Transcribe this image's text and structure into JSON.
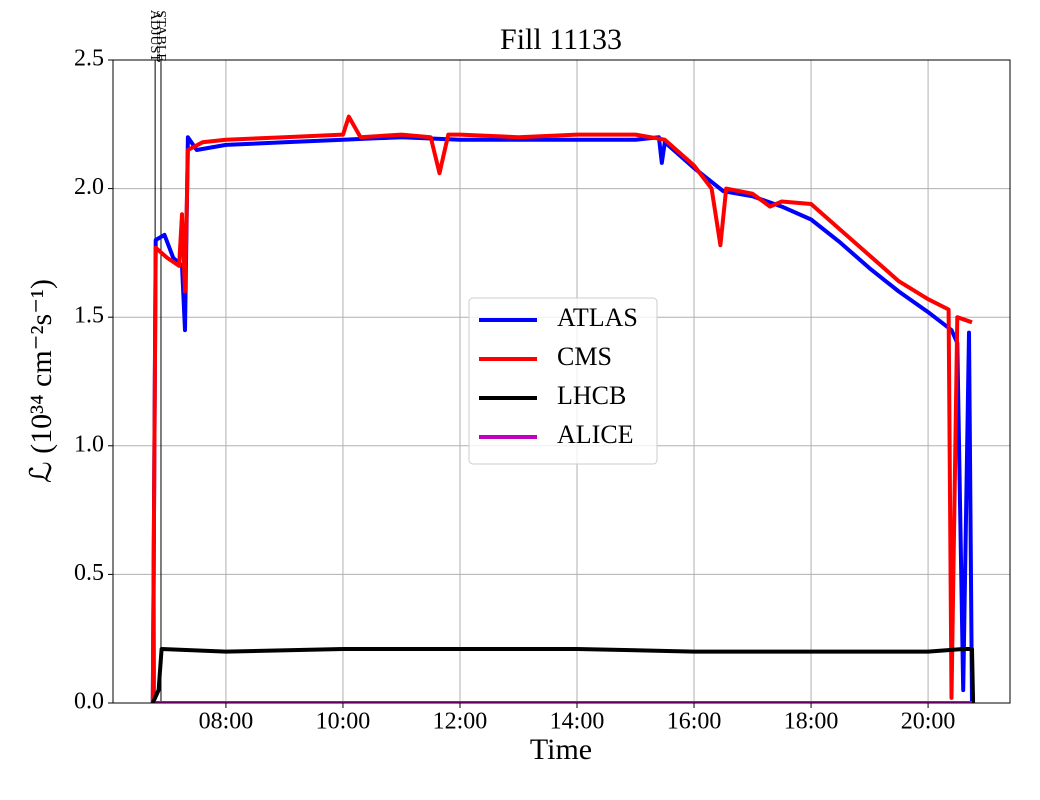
{
  "chart_data": {
    "type": "line",
    "title": "Fill 11133",
    "x_label": "Time",
    "y_label": "ℒ (10³⁴ cm⁻²s⁻¹)",
    "xlim": [
      6.07,
      21.4
    ],
    "ylim": [
      0,
      2.5
    ],
    "xticks": [
      {
        "value": 8,
        "label": "08:00"
      },
      {
        "value": 10,
        "label": "10:00"
      },
      {
        "value": 12,
        "label": "12:00"
      },
      {
        "value": 14,
        "label": "14:00"
      },
      {
        "value": 16,
        "label": "16:00"
      },
      {
        "value": 18,
        "label": "18:00"
      },
      {
        "value": 20,
        "label": "20:00"
      }
    ],
    "yticks": [
      {
        "value": 0,
        "label": "0.0"
      },
      0.5,
      {
        "value": 1,
        "label": "1.0"
      },
      1.5,
      {
        "value": 2,
        "label": "2.0"
      },
      2.5
    ],
    "grid": true,
    "legend": "center",
    "annotations": [
      {
        "text": "ADJUST",
        "x": 6.79
      },
      {
        "text": "STABLE",
        "x": 6.89
      }
    ],
    "series": [
      {
        "name": "ATLAS",
        "color": "#0000ff",
        "x": [
          6.75,
          6.8,
          6.95,
          7.1,
          7.25,
          7.3,
          7.35,
          7.5,
          8,
          9,
          10,
          11,
          12,
          13,
          14,
          15,
          15.4,
          15.45,
          15.5,
          16,
          16.5,
          17,
          17.5,
          18,
          18.5,
          19,
          19.5,
          20,
          20.4,
          20.5,
          20.6,
          20.7,
          20.75
        ],
        "values": [
          0,
          1.8,
          1.82,
          1.73,
          1.7,
          1.45,
          2.2,
          2.15,
          2.17,
          2.18,
          2.19,
          2.2,
          2.19,
          2.19,
          2.19,
          2.19,
          2.2,
          2.1,
          2.18,
          2.08,
          1.99,
          1.97,
          1.93,
          1.88,
          1.79,
          1.69,
          1.6,
          1.52,
          1.45,
          1.4,
          0.05,
          1.44,
          0
        ]
      },
      {
        "name": "CMS",
        "color": "#ff0000",
        "x": [
          6.75,
          6.8,
          7.0,
          7.2,
          7.25,
          7.3,
          7.35,
          7.6,
          8,
          9,
          10,
          10.1,
          10.3,
          11,
          11.5,
          11.65,
          11.8,
          12,
          13,
          14,
          15,
          15.5,
          16,
          16.3,
          16.45,
          16.55,
          17,
          17.3,
          17.5,
          18,
          18.5,
          19,
          19.5,
          20,
          20.35,
          20.4,
          20.5,
          20.75
        ],
        "values": [
          0,
          1.77,
          1.73,
          1.7,
          1.9,
          1.6,
          2.15,
          2.18,
          2.19,
          2.2,
          2.21,
          2.28,
          2.2,
          2.21,
          2.2,
          2.06,
          2.21,
          2.21,
          2.2,
          2.21,
          2.21,
          2.19,
          2.09,
          2.0,
          1.78,
          2.0,
          1.98,
          1.93,
          1.95,
          1.94,
          1.84,
          1.74,
          1.64,
          1.57,
          1.53,
          0.02,
          1.5,
          1.48
        ]
      },
      {
        "name": "LHCB",
        "color": "#000000",
        "x": [
          6.75,
          6.85,
          6.9,
          8,
          10,
          12,
          14,
          16,
          18,
          20,
          20.6,
          20.75,
          20.77
        ],
        "values": [
          0,
          0.05,
          0.21,
          0.2,
          0.21,
          0.21,
          0.21,
          0.2,
          0.2,
          0.2,
          0.21,
          0.21,
          0
        ]
      },
      {
        "name": "ALICE",
        "color": "#bf00bf",
        "x": [
          6.8,
          20.75
        ],
        "values": [
          0,
          0
        ]
      }
    ]
  }
}
